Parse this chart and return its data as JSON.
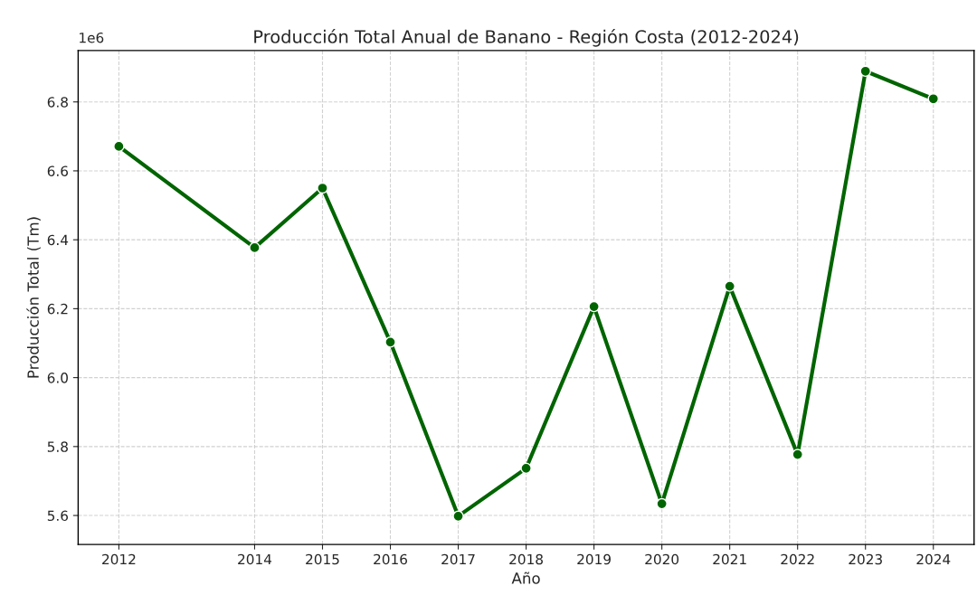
{
  "chart_data": {
    "type": "line",
    "title": "Producción Total Anual de Banano - Región Costa (2012-2024)",
    "xlabel": "Año",
    "ylabel": "Producción Total (Tm)",
    "x": [
      2012,
      2014,
      2015,
      2016,
      2017,
      2018,
      2019,
      2020,
      2021,
      2022,
      2023,
      2024
    ],
    "series": [
      {
        "color": "#006400",
        "values": [
          6.671,
          6.377,
          6.55,
          6.103,
          5.598,
          5.737,
          6.206,
          5.634,
          6.265,
          5.777,
          6.889,
          6.809
        ]
      }
    ],
    "xlim": [
      2011.4,
      2024.6
    ],
    "xticks": [
      2012,
      2014,
      2015,
      2016,
      2017,
      2018,
      2019,
      2020,
      2021,
      2022,
      2023,
      2024
    ],
    "ylim": [
      5.516,
      6.949
    ],
    "yticks": [
      5.6,
      5.8,
      {
        "value": 6.0,
        "label": "6.0"
      },
      6.2,
      6.4,
      6.6,
      6.8
    ],
    "annotations": [
      "1e6"
    ],
    "grid": true,
    "marker": "circle",
    "line_style": "solid",
    "legend": false
  }
}
